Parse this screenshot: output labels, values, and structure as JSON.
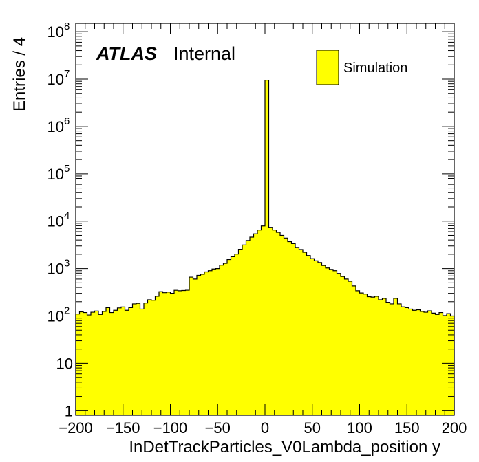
{
  "chart_data": {
    "type": "bar",
    "title": "",
    "xlabel": "InDetTrackParticles_V0Lambda_position y",
    "ylabel": "Entries / 4",
    "xlim": [
      -200,
      200
    ],
    "ylim": [
      0.8,
      150000000
    ],
    "log_y": true,
    "grid": false,
    "bin_width": 4,
    "x_tick_labels": [
      "−200",
      "−150",
      "−100",
      "−50",
      "0",
      "50",
      "100",
      "150",
      "200"
    ],
    "x_ticks": [
      -200,
      -150,
      -100,
      -50,
      0,
      50,
      100,
      150,
      200
    ],
    "y_ticks": [
      {
        "value": 1,
        "base": "1",
        "exp": ""
      },
      {
        "value": 10,
        "base": "10",
        "exp": ""
      },
      {
        "value": 100,
        "base": "10",
        "exp": "2"
      },
      {
        "value": 1000,
        "base": "10",
        "exp": "3"
      },
      {
        "value": 10000,
        "base": "10",
        "exp": "4"
      },
      {
        "value": 100000,
        "base": "10",
        "exp": "5"
      },
      {
        "value": 1000000,
        "base": "10",
        "exp": "6"
      },
      {
        "value": 10000000,
        "base": "10",
        "exp": "7"
      },
      {
        "value": 100000000,
        "base": "10",
        "exp": "8"
      }
    ],
    "series": [
      {
        "name": "Simulation",
        "color": "#ffff00",
        "edge_color": "#000000",
        "bin_low_edges": [
          -200,
          -196,
          -192,
          -188,
          -184,
          -180,
          -176,
          -172,
          -168,
          -164,
          -160,
          -156,
          -152,
          -148,
          -144,
          -140,
          -136,
          -132,
          -128,
          -124,
          -120,
          -116,
          -112,
          -108,
          -104,
          -100,
          -96,
          -92,
          -88,
          -84,
          -80,
          -76,
          -72,
          -68,
          -64,
          -60,
          -56,
          -52,
          -48,
          -44,
          -40,
          -36,
          -32,
          -28,
          -24,
          -20,
          -16,
          -12,
          -8,
          -4,
          0,
          4,
          8,
          12,
          16,
          20,
          24,
          28,
          32,
          36,
          40,
          44,
          48,
          52,
          56,
          60,
          64,
          68,
          72,
          76,
          80,
          84,
          88,
          92,
          96,
          100,
          104,
          108,
          112,
          116,
          120,
          124,
          128,
          132,
          136,
          140,
          144,
          148,
          152,
          156,
          160,
          164,
          168,
          172,
          176,
          180,
          184,
          188,
          192,
          196
        ],
        "values": [
          110,
          122,
          118,
          105,
          120,
          127,
          108,
          125,
          150,
          118,
          132,
          148,
          155,
          132,
          150,
          180,
          185,
          140,
          188,
          220,
          215,
          260,
          325,
          310,
          320,
          300,
          348,
          340,
          345,
          350,
          660,
          600,
          720,
          760,
          850,
          900,
          980,
          1000,
          1180,
          1290,
          1550,
          1780,
          2020,
          2550,
          3150,
          3900,
          4600,
          5400,
          6500,
          7900,
          9500000,
          7400,
          6500,
          5800,
          5000,
          4400,
          3700,
          3350,
          2800,
          2520,
          2200,
          1880,
          1620,
          1460,
          1340,
          1160,
          1030,
          960,
          900,
          790,
          680,
          600,
          540,
          430,
          340,
          305,
          290,
          255,
          250,
          260,
          220,
          235,
          195,
          180,
          235,
          180,
          156,
          150,
          140,
          132,
          135,
          125,
          120,
          128,
          115,
          108,
          118,
          102,
          112,
          100
        ]
      }
    ],
    "legend": {
      "position": "top-right",
      "entries": [
        "Simulation"
      ]
    },
    "annotations": {
      "atlas": "ATLAS",
      "status": "Internal"
    }
  }
}
